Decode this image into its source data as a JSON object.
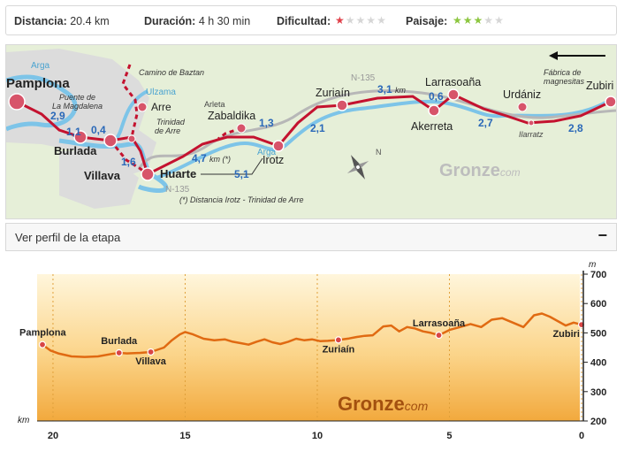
{
  "stats": {
    "distance_label": "Distancia:",
    "distance_value": "20.4 km",
    "duration_label": "Duración:",
    "duration_value": "4 h 30 min",
    "difficulty_label": "Dificultad:",
    "difficulty_rating": 1,
    "difficulty_max": 5,
    "landscape_label": "Paisaje:",
    "landscape_rating": 3,
    "landscape_max": 5
  },
  "map": {
    "places": {
      "pamplona": "Pamplona",
      "burlada": "Burlada",
      "villava": "Villava",
      "huarte": "Huarte",
      "arre": "Arre",
      "zabaldika": "Zabaldika",
      "irotz": "Irotz",
      "zuriain": "Zuriaín",
      "akerreta": "Akerreta",
      "larrasoana": "Larrasoaña",
      "urdaniz": "Urdániz",
      "zubiri": "Zubiri",
      "ilarratz": "Ilarratz",
      "arleta": "Arleta"
    },
    "labels": {
      "puente_1": "Puente de",
      "puente_2": "La Magdalena",
      "trinidad_1": "Trinidad",
      "trinidad_2": "de Arre",
      "camino_baztan": "Camino de Baztan",
      "fabrica_1": "Fábrica de",
      "fabrica_2": "magnesitas",
      "river_arga_1": "Arga",
      "river_arga_2": "Arga",
      "river_ulzama": "Ulzama",
      "road_n135_1": "N-135",
      "road_n135_2": "N-135",
      "footnote": "(*) Distancia Irotz - Trinidad de Arre",
      "brand_main": "Gronze",
      "brand_suffix": "com"
    },
    "distances": {
      "d1": "2,9",
      "d2": "1,1",
      "d3": "0,4",
      "d4": "1,6",
      "d5": "4,7",
      "d5_unit": "km (*)",
      "d6": "1,3",
      "d7": "5,1",
      "d8": "2,1",
      "d9": "3,1",
      "d9_unit": "km",
      "d10": "0,6",
      "d11": "2,7",
      "d12": "2,8"
    }
  },
  "profile_header": {
    "title": "Ver perfil de la etapa",
    "toggle": "−"
  },
  "chart_data": {
    "type": "area",
    "xlabel": "km",
    "ylabel": "m",
    "xlim": [
      20.4,
      0
    ],
    "ylim": [
      200,
      700
    ],
    "x_ticks": [
      "20",
      "15",
      "10",
      "5",
      "0"
    ],
    "y_ticks": [
      "700",
      "600",
      "500",
      "400",
      "300",
      "200"
    ],
    "brand_main": "Gronze",
    "brand_suffix": "com",
    "series": [
      {
        "x": [
          20.4,
          20.1,
          19.8,
          19.3,
          18.8,
          18.3,
          17.8,
          17.5,
          17.2,
          16.7,
          16.3,
          15.8,
          15.5,
          15.2,
          15.0,
          14.7,
          14.3,
          13.9,
          13.5,
          13.2,
          12.9,
          12.6,
          12.3,
          12.0,
          11.7,
          11.4,
          11.1,
          10.8,
          10.5,
          10.2,
          9.9,
          9.6,
          9.2,
          8.8,
          8.5,
          8.2,
          7.9,
          7.5,
          7.2,
          6.9,
          6.6,
          6.3,
          6.0,
          5.7,
          5.4,
          5.0,
          4.6,
          4.2,
          3.8,
          3.4,
          3.0,
          2.6,
          2.2,
          1.8,
          1.5,
          1.2,
          0.9,
          0.6,
          0.3,
          0.0
        ],
        "y": [
          460,
          440,
          430,
          420,
          418,
          420,
          428,
          432,
          430,
          432,
          435,
          450,
          475,
          495,
          503,
          495,
          480,
          475,
          478,
          470,
          465,
          460,
          470,
          478,
          468,
          462,
          470,
          480,
          475,
          478,
          472,
          473,
          476,
          481,
          486,
          490,
          492,
          522,
          525,
          505,
          520,
          515,
          505,
          500,
          492,
          510,
          520,
          530,
          520,
          545,
          550,
          535,
          520,
          560,
          566,
          555,
          540,
          525,
          535,
          528
        ]
      }
    ],
    "markers": [
      {
        "label": "Pamplona",
        "x": 20.4,
        "y": 460
      },
      {
        "label": "Burlada",
        "x": 17.5,
        "y": 432
      },
      {
        "label": "Villava",
        "x": 16.3,
        "y": 435
      },
      {
        "label": "Zuriaín",
        "x": 9.2,
        "y": 476
      },
      {
        "label": "Larrasoaña",
        "x": 5.4,
        "y": 492
      },
      {
        "label": "Zubiri",
        "x": 0.0,
        "y": 528
      }
    ]
  }
}
